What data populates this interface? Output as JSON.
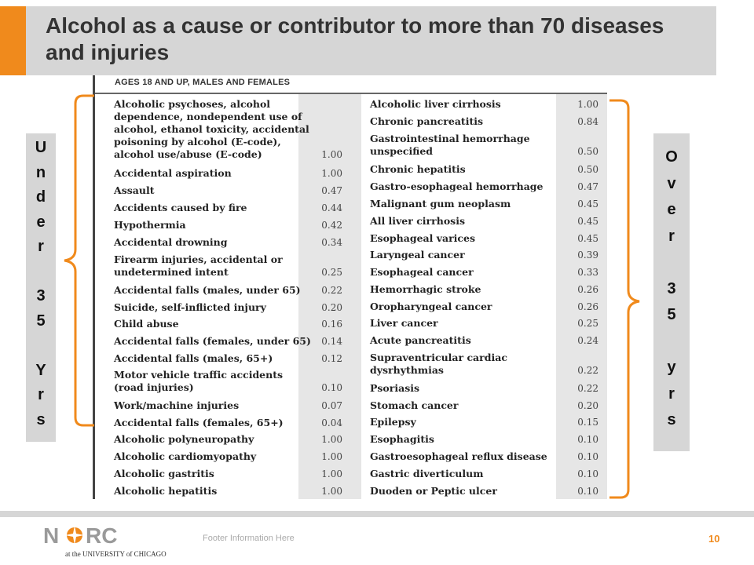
{
  "title": "Alcohol as a cause or contributor to more than 70 diseases and injuries",
  "table_header": "AGES 18 AND UP, MALES AND FEMALES",
  "left_column": [
    {
      "name": "Alcoholic psychoses, alcohol\ndependence, nondependent use of\nalcohol, ethanol toxicity, accidental\npoisoning by alcohol (E-code),\nalcohol use/abuse (E-code)",
      "value": "1.00"
    },
    {
      "name": "Accidental aspiration",
      "value": "1.00"
    },
    {
      "name": "Assault",
      "value": "0.47"
    },
    {
      "name": "Accidents caused by fire",
      "value": "0.44"
    },
    {
      "name": "Hypothermia",
      "value": "0.42"
    },
    {
      "name": "Accidental drowning",
      "value": "0.34"
    },
    {
      "name": "Firearm injuries, accidental or\nundetermined intent",
      "value": "0.25"
    },
    {
      "name": "Accidental falls (males, under 65)",
      "value": "0.22"
    },
    {
      "name": "Suicide, self-inflicted injury",
      "value": "0.20"
    },
    {
      "name": "Child abuse",
      "value": "0.16"
    },
    {
      "name": "Accidental falls (females, under 65)",
      "value": "0.14"
    },
    {
      "name": "Accidental falls (males, 65+)",
      "value": "0.12"
    },
    {
      "name": "Motor vehicle traffic accidents\n(road injuries)",
      "value": "0.10"
    },
    {
      "name": "Work/machine injuries",
      "value": "0.07"
    },
    {
      "name": "Accidental falls (females, 65+)",
      "value": "0.04"
    },
    {
      "name": "Alcoholic polyneuropathy",
      "value": "1.00"
    },
    {
      "name": "Alcoholic cardiomyopathy",
      "value": "1.00"
    },
    {
      "name": "Alcoholic gastritis",
      "value": "1.00"
    },
    {
      "name": "Alcoholic hepatitis",
      "value": "1.00"
    }
  ],
  "right_column": [
    {
      "name": "Alcoholic liver cirrhosis",
      "value": "1.00"
    },
    {
      "name": "Chronic pancreatitis",
      "value": "0.84"
    },
    {
      "name": "Gastrointestinal hemorrhage\nunspecified",
      "value": "0.50"
    },
    {
      "name": "Chronic hepatitis",
      "value": "0.50"
    },
    {
      "name": "Gastro-esophageal hemorrhage",
      "value": "0.47"
    },
    {
      "name": "Malignant gum neoplasm",
      "value": "0.45"
    },
    {
      "name": "All liver cirrhosis",
      "value": "0.45"
    },
    {
      "name": "Esophageal varices",
      "value": "0.45"
    },
    {
      "name": "Laryngeal cancer",
      "value": "0.39"
    },
    {
      "name": "Esophageal cancer",
      "value": "0.33"
    },
    {
      "name": "Hemorrhagic stroke",
      "value": "0.26"
    },
    {
      "name": "Oropharyngeal cancer",
      "value": "0.26"
    },
    {
      "name": "Liver cancer",
      "value": "0.25"
    },
    {
      "name": "Acute pancreatitis",
      "value": "0.24"
    },
    {
      "name": "Supraventricular cardiac\ndysrhythmias",
      "value": "0.22"
    },
    {
      "name": "Psoriasis",
      "value": "0.22"
    },
    {
      "name": "Stomach cancer",
      "value": "0.20"
    },
    {
      "name": "Epilepsy",
      "value": "0.15"
    },
    {
      "name": "Esophagitis",
      "value": "0.10"
    },
    {
      "name": "Gastroesophageal reflux disease",
      "value": "0.10"
    },
    {
      "name": "Gastric diverticulum",
      "value": "0.10"
    },
    {
      "name": "Duoden or Peptic ulcer",
      "value": "0.10"
    }
  ],
  "side_labels": {
    "left": [
      "U",
      "n",
      "d",
      "e",
      "r",
      "",
      "3",
      "5",
      "",
      "Y",
      "r",
      "s"
    ],
    "right": [
      "O",
      "v",
      "e",
      "r",
      "",
      "3",
      "5",
      "",
      "y",
      "r",
      "s"
    ]
  },
  "footer": {
    "logo_text": "NORC",
    "logo_subtext": "at the UNIVERSITY of CHICAGO",
    "text": "Footer Information Here",
    "page_number": "10"
  },
  "colors": {
    "accent": "#f08a1c",
    "panel_gray": "#d6d6d6",
    "value_column_gray": "#e6e6e6"
  }
}
